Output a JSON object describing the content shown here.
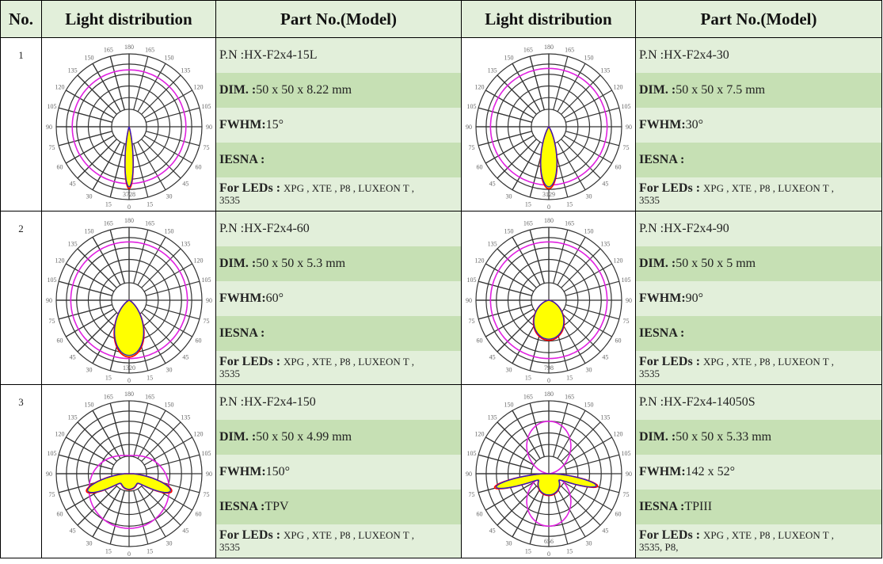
{
  "header": {
    "no": "No.",
    "light": "Light distribution",
    "part": "Part No.(Model)"
  },
  "angle_labels": [
    "0",
    "15",
    "30",
    "45",
    "60",
    "75",
    "90",
    "105",
    "120",
    "135",
    "150",
    "165",
    "180"
  ],
  "colors": {
    "light_row": "#e2efda",
    "dark_row": "#c6e0b4",
    "lobe_fill": "#ffff00",
    "lobe_red": "#ff0000",
    "lobe_blue": "#2222cc",
    "magenta": "#e020e0"
  },
  "labels": {
    "pn": "P.N : ",
    "dim": "DIM. : ",
    "fwhm": "FWHM: ",
    "iesna": "IESNA : ",
    "leds": "For LEDs : "
  },
  "rows": [
    {
      "number": "1",
      "items": [
        {
          "pn": "HX-F2x4-15L",
          "dim": "50 x 50 x 8.22 mm",
          "fwhm": "15°",
          "iesna": "",
          "leds": "XPG , XTE , P8 , LUXEON T ,",
          "leds2": "3535",
          "peak": "3728"
        },
        {
          "pn": "HX-F2x4-30",
          "dim": "50 x 50 x 7.5 mm",
          "fwhm": "30°",
          "iesna": "",
          "leds": "XPG , XTE , P8 , LUXEON T ,",
          "leds2": "3535",
          "peak": "3129"
        }
      ]
    },
    {
      "number": "2",
      "items": [
        {
          "pn": "HX-F2x4-60",
          "dim": "50 x 50 x 5.3 mm",
          "fwhm": "60°",
          "iesna": "",
          "leds": "XPG , XTE , P8 , LUXEON T ,",
          "leds2": "3535",
          "peak": "1320"
        },
        {
          "pn": "HX-F2x4-90",
          "dim": "50 x 50 x 5 mm",
          "fwhm": "90°",
          "iesna": "",
          "leds": "XPG , XTE , P8 , LUXEON T ,",
          "leds2": "3535",
          "peak": "798"
        }
      ]
    },
    {
      "number": "3",
      "items": [
        {
          "pn": "HX-F2x4-150",
          "dim": "50 x 50 x 4.99 mm",
          "fwhm": "150°",
          "iesna": " TPV",
          "leds": "XPG , XTE , P8 , LUXEON T ,",
          "leds2": "3535",
          "peak": ""
        },
        {
          "pn": "HX-F2x4-14050S",
          "dim": "50 x 50 x 5.33 mm",
          "fwhm": "142 x 52°",
          "iesna": " TPIII",
          "leds": "XPG , XTE , P8 , LUXEON T ,",
          "leds2": "3535, P8,",
          "peak": "656"
        }
      ]
    }
  ]
}
